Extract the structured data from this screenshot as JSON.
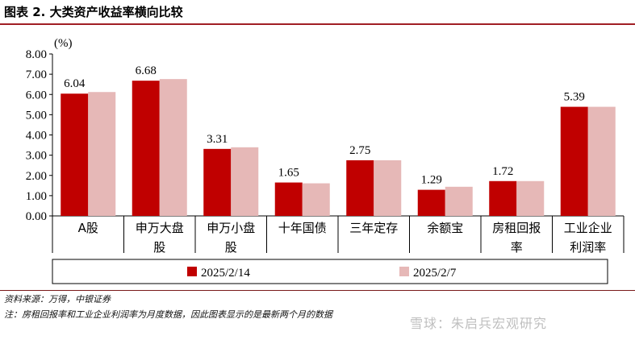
{
  "figure": {
    "title": "图表 2.  大类资产收益率横向比较"
  },
  "chart_data": {
    "type": "bar",
    "unit_label": "(%)",
    "ylim": [
      0,
      8
    ],
    "yticks": [
      "0.00",
      "1.00",
      "2.00",
      "3.00",
      "4.00",
      "5.00",
      "6.00",
      "7.00",
      "8.00"
    ],
    "categories": [
      [
        "A股"
      ],
      [
        "申万大盘",
        "股"
      ],
      [
        "申万小盘",
        "股"
      ],
      [
        "十年国债"
      ],
      [
        "三年定存"
      ],
      [
        "余额宝"
      ],
      [
        "房租回报",
        "率"
      ],
      [
        "工业企业",
        "利润率"
      ]
    ],
    "series": [
      {
        "name": "2025/2/14",
        "color": "#c00000",
        "values": [
          6.04,
          6.68,
          3.31,
          1.65,
          2.75,
          1.29,
          1.72,
          5.39
        ],
        "labels": [
          "6.04",
          "6.68",
          "3.31",
          "1.65",
          "2.75",
          "1.29",
          "1.72",
          "5.39"
        ]
      },
      {
        "name": "2025/2/7",
        "color": "#e6b8b7",
        "values": [
          6.12,
          6.76,
          3.39,
          1.61,
          2.75,
          1.44,
          1.72,
          5.39
        ]
      }
    ],
    "legend_position": "bottom",
    "grid": false
  },
  "notes": {
    "source": "资料来源：万得，中银证券",
    "note": "注：房租回报率和工业企业利润率为月度数据，因此图表显示的是最新两个月的数据"
  },
  "watermark": "雪球：朱启兵宏观研究"
}
